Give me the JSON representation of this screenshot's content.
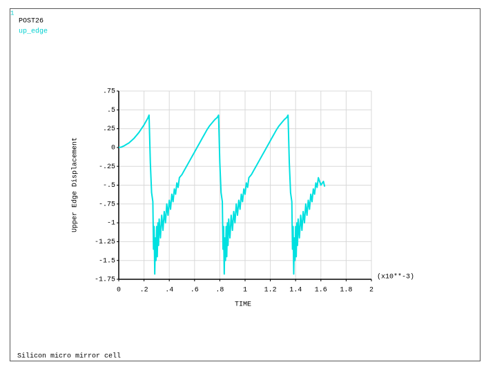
{
  "chart_data": {
    "type": "line",
    "window_number": "1",
    "program": "POST26",
    "footer": "Silicon micro mirror cell",
    "x_label": "TIME",
    "y_label": "Upper Edge Displacement",
    "x_multiplier": "(x10**-3)",
    "grid": true,
    "xlim": [
      0,
      2
    ],
    "ylim": [
      -1.75,
      0.75
    ],
    "xticks": [
      0,
      {
        "value": 0.2,
        "label": ".2"
      },
      {
        "value": 0.4,
        "label": ".4"
      },
      {
        "value": 0.6,
        "label": ".6"
      },
      {
        "value": 0.8,
        "label": ".8"
      },
      1,
      1.2,
      1.4,
      1.6,
      1.8,
      2
    ],
    "yticks": [
      {
        "value": 0.75,
        "label": ".75"
      },
      {
        "value": 0.5,
        "label": ".5"
      },
      {
        "value": 0.25,
        "label": ".25"
      },
      0,
      {
        "value": -0.25,
        "label": "-.25"
      },
      {
        "value": -0.5,
        "label": "-.5"
      },
      {
        "value": -0.75,
        "label": "-.75"
      },
      -1,
      -1.25,
      -1.5,
      -1.75
    ],
    "x": [
      0,
      0.02,
      0.04,
      0.06,
      0.08,
      0.1,
      0.12,
      0.14,
      0.16,
      0.18,
      0.2,
      0.22,
      0.23,
      0.24,
      0.25,
      0.26,
      0.27,
      0.275,
      0.28,
      0.285,
      0.29,
      0.295,
      0.3,
      0.305,
      0.31,
      0.315,
      0.32,
      0.33,
      0.34,
      0.35,
      0.36,
      0.37,
      0.38,
      0.39,
      0.4,
      0.41,
      0.42,
      0.43,
      0.44,
      0.45,
      0.46,
      0.47,
      0.48,
      0.5,
      0.52,
      0.54,
      0.56,
      0.58,
      0.6,
      0.62,
      0.64,
      0.66,
      0.68,
      0.7,
      0.72,
      0.74,
      0.76,
      0.78,
      0.79,
      0.8,
      0.81,
      0.82,
      0.825,
      0.83,
      0.835,
      0.84,
      0.845,
      0.85,
      0.855,
      0.86,
      0.865,
      0.87,
      0.88,
      0.89,
      0.9,
      0.91,
      0.92,
      0.93,
      0.94,
      0.95,
      0.96,
      0.97,
      0.98,
      0.99,
      1.0,
      1.01,
      1.02,
      1.03,
      1.05,
      1.07,
      1.09,
      1.11,
      1.13,
      1.15,
      1.17,
      1.19,
      1.21,
      1.23,
      1.25,
      1.27,
      1.29,
      1.31,
      1.33,
      1.34,
      1.35,
      1.36,
      1.37,
      1.375,
      1.38,
      1.385,
      1.39,
      1.395,
      1.4,
      1.405,
      1.41,
      1.415,
      1.42,
      1.43,
      1.44,
      1.45,
      1.46,
      1.47,
      1.48,
      1.49,
      1.5,
      1.51,
      1.52,
      1.53,
      1.54,
      1.55,
      1.56,
      1.57,
      1.58,
      1.6,
      1.62,
      1.63
    ],
    "series": [
      {
        "name": "up_edge",
        "color": "#00e0e0",
        "values": [
          0,
          0.005,
          0.02,
          0.04,
          0.06,
          0.09,
          0.12,
          0.16,
          0.2,
          0.25,
          0.3,
          0.36,
          0.39,
          0.43,
          -0.2,
          -0.6,
          -0.72,
          -1.35,
          -1.05,
          -1.68,
          -1.2,
          -1.5,
          -1.05,
          -1.45,
          -1.0,
          -1.3,
          -0.95,
          -1.2,
          -0.9,
          -1.1,
          -0.85,
          -1.0,
          -0.75,
          -0.9,
          -0.7,
          -0.82,
          -0.62,
          -0.72,
          -0.55,
          -0.62,
          -0.47,
          -0.53,
          -0.4,
          -0.36,
          -0.3,
          -0.24,
          -0.18,
          -0.12,
          -0.06,
          0.0,
          0.06,
          0.12,
          0.18,
          0.24,
          0.29,
          0.33,
          0.37,
          0.4,
          0.43,
          -0.2,
          -0.6,
          -0.72,
          -1.35,
          -1.05,
          -1.68,
          -1.2,
          -1.5,
          -1.05,
          -1.45,
          -1.0,
          -1.3,
          -0.95,
          -1.2,
          -0.9,
          -1.1,
          -0.85,
          -1.0,
          -0.75,
          -0.9,
          -0.7,
          -0.82,
          -0.62,
          -0.72,
          -0.55,
          -0.62,
          -0.47,
          -0.53,
          -0.4,
          -0.36,
          -0.3,
          -0.24,
          -0.18,
          -0.12,
          -0.06,
          0.0,
          0.06,
          0.12,
          0.18,
          0.24,
          0.29,
          0.33,
          0.37,
          0.4,
          0.43,
          -0.2,
          -0.6,
          -0.72,
          -1.35,
          -1.05,
          -1.68,
          -1.2,
          -1.5,
          -1.05,
          -1.45,
          -1.0,
          -1.3,
          -0.95,
          -1.2,
          -0.9,
          -1.1,
          -0.85,
          -1.0,
          -0.75,
          -0.9,
          -0.7,
          -0.82,
          -0.62,
          -0.72,
          -0.55,
          -0.62,
          -0.47,
          -0.53,
          -0.4,
          -0.5,
          -0.45,
          -0.52
        ]
      }
    ]
  }
}
